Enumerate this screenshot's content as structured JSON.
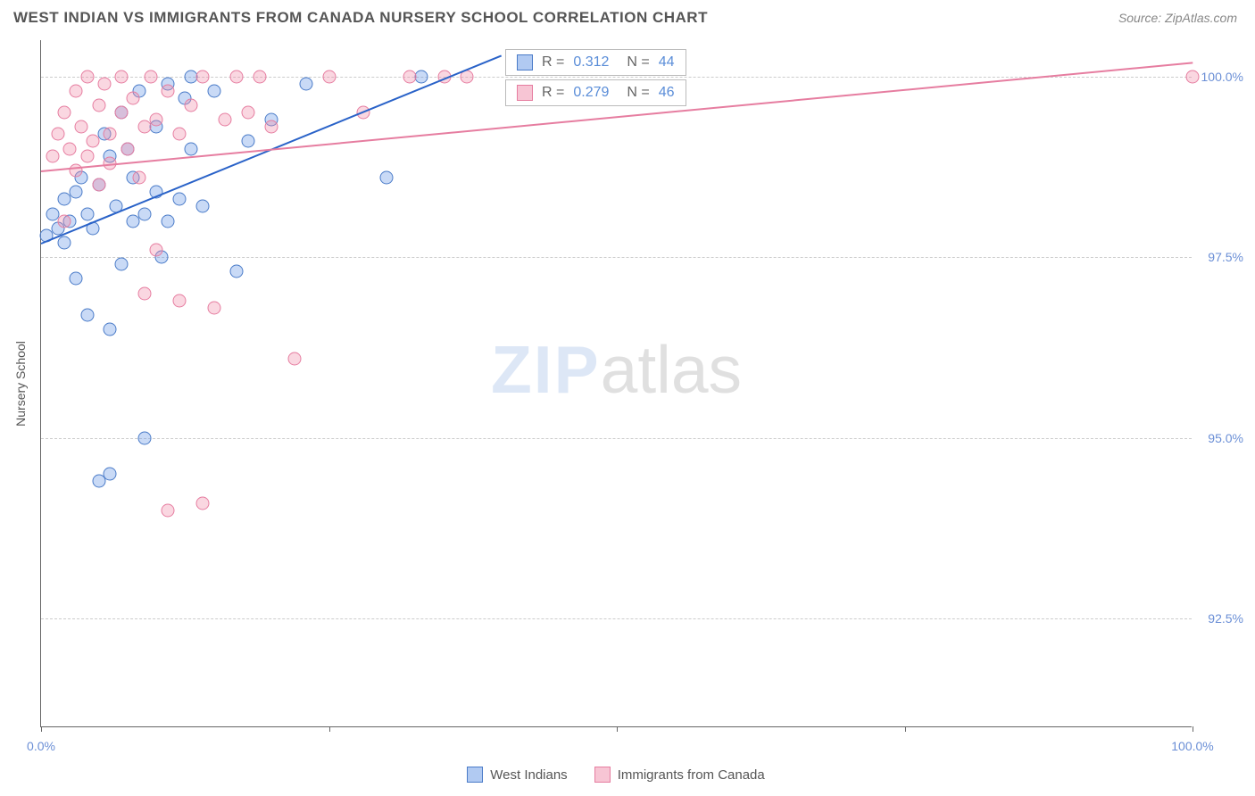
{
  "header": {
    "title": "WEST INDIAN VS IMMIGRANTS FROM CANADA NURSERY SCHOOL CORRELATION CHART",
    "source": "Source: ZipAtlas.com"
  },
  "watermark": {
    "part1": "ZIP",
    "part2": "atlas"
  },
  "chart": {
    "type": "scatter",
    "ylabel": "Nursery School",
    "background_color": "#ffffff",
    "grid_color": "#cccccc",
    "axis_color": "#666666",
    "xlim": [
      0,
      100
    ],
    "ylim": [
      91.0,
      100.5
    ],
    "yticks": [
      {
        "value": 92.5,
        "label": "92.5%"
      },
      {
        "value": 95.0,
        "label": "95.0%"
      },
      {
        "value": 97.5,
        "label": "97.5%"
      },
      {
        "value": 100.0,
        "label": "100.0%"
      }
    ],
    "xticks": [
      {
        "value": 0,
        "label": "0.0%"
      },
      {
        "value": 25,
        "label": ""
      },
      {
        "value": 50,
        "label": ""
      },
      {
        "value": 75,
        "label": ""
      },
      {
        "value": 100,
        "label": "100.0%"
      }
    ],
    "marker_size": 15,
    "series": [
      {
        "id": "west_indians",
        "label": "West Indians",
        "fill_color": "rgba(100,150,230,0.35)",
        "stroke_color": "#4a7bc8",
        "trend_color": "#2962c8",
        "R": "0.312",
        "N": "44",
        "trend": {
          "x1": 0,
          "y1": 97.7,
          "x2": 40,
          "y2": 100.3
        },
        "points": [
          [
            0.5,
            97.8
          ],
          [
            1,
            98.1
          ],
          [
            1.5,
            97.9
          ],
          [
            2,
            98.3
          ],
          [
            2,
            97.7
          ],
          [
            2.5,
            98.0
          ],
          [
            3,
            98.4
          ],
          [
            3,
            97.2
          ],
          [
            3.5,
            98.6
          ],
          [
            4,
            98.1
          ],
          [
            4,
            96.7
          ],
          [
            4.5,
            97.9
          ],
          [
            5,
            98.5
          ],
          [
            5,
            94.4
          ],
          [
            5.5,
            99.2
          ],
          [
            6,
            98.9
          ],
          [
            6,
            96.5
          ],
          [
            6,
            94.5
          ],
          [
            6.5,
            98.2
          ],
          [
            7,
            97.4
          ],
          [
            7,
            99.5
          ],
          [
            7.5,
            99.0
          ],
          [
            8,
            98.0
          ],
          [
            8,
            98.6
          ],
          [
            8.5,
            99.8
          ],
          [
            9,
            98.1
          ],
          [
            9,
            95.0
          ],
          [
            10,
            99.3
          ],
          [
            10,
            98.4
          ],
          [
            10.5,
            97.5
          ],
          [
            11,
            99.9
          ],
          [
            11,
            98.0
          ],
          [
            12,
            98.3
          ],
          [
            12.5,
            99.7
          ],
          [
            13,
            99.0
          ],
          [
            13,
            100.0
          ],
          [
            14,
            98.2
          ],
          [
            15,
            99.8
          ],
          [
            17,
            97.3
          ],
          [
            18,
            99.1
          ],
          [
            20,
            99.4
          ],
          [
            23,
            99.9
          ],
          [
            30,
            98.6
          ],
          [
            33,
            100.0
          ]
        ]
      },
      {
        "id": "immigrants_canada",
        "label": "Immigrants from Canada",
        "fill_color": "rgba(240,140,170,0.35)",
        "stroke_color": "#e67da0",
        "trend_color": "#e67da0",
        "R": "0.279",
        "N": "46",
        "trend": {
          "x1": 0,
          "y1": 98.7,
          "x2": 100,
          "y2": 100.2
        },
        "points": [
          [
            1,
            98.9
          ],
          [
            1.5,
            99.2
          ],
          [
            2,
            98.0
          ],
          [
            2,
            99.5
          ],
          [
            2.5,
            99.0
          ],
          [
            3,
            99.8
          ],
          [
            3,
            98.7
          ],
          [
            3.5,
            99.3
          ],
          [
            4,
            98.9
          ],
          [
            4,
            100.0
          ],
          [
            4.5,
            99.1
          ],
          [
            5,
            99.6
          ],
          [
            5,
            98.5
          ],
          [
            5.5,
            99.9
          ],
          [
            6,
            99.2
          ],
          [
            6,
            98.8
          ],
          [
            7,
            99.5
          ],
          [
            7,
            100.0
          ],
          [
            7.5,
            99.0
          ],
          [
            8,
            99.7
          ],
          [
            8.5,
            98.6
          ],
          [
            9,
            99.3
          ],
          [
            9,
            97.0
          ],
          [
            9.5,
            100.0
          ],
          [
            10,
            99.4
          ],
          [
            10,
            97.6
          ],
          [
            11,
            99.8
          ],
          [
            11,
            94.0
          ],
          [
            12,
            99.2
          ],
          [
            12,
            96.9
          ],
          [
            13,
            99.6
          ],
          [
            14,
            100.0
          ],
          [
            14,
            94.1
          ],
          [
            15,
            96.8
          ],
          [
            16,
            99.4
          ],
          [
            17,
            100.0
          ],
          [
            18,
            99.5
          ],
          [
            19,
            100.0
          ],
          [
            20,
            99.3
          ],
          [
            22,
            96.1
          ],
          [
            25,
            100.0
          ],
          [
            28,
            99.5
          ],
          [
            32,
            100.0
          ],
          [
            35,
            100.0
          ],
          [
            37,
            100.0
          ],
          [
            100,
            100.0
          ]
        ]
      }
    ],
    "stats_legend": {
      "r_label": "R =",
      "n_label": "N ="
    },
    "bottom_legend": [
      {
        "series": "west_indians",
        "label": "West Indians"
      },
      {
        "series": "immigrants_canada",
        "label": "Immigrants from Canada"
      }
    ]
  }
}
